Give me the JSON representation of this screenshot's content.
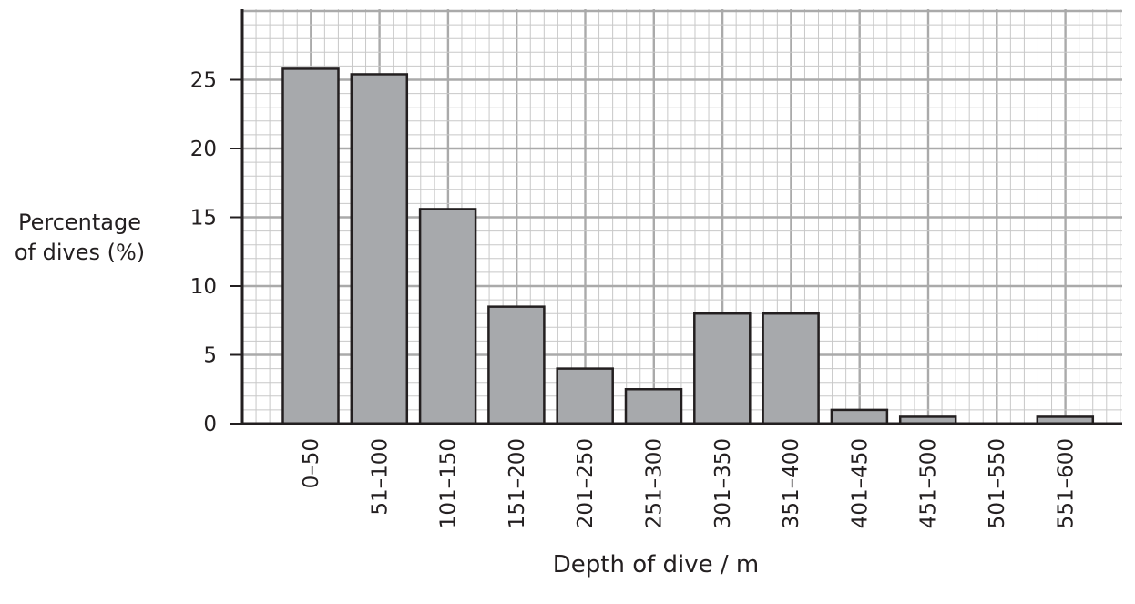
{
  "chart_data": {
    "type": "bar",
    "xlabel": "Depth of dive / m",
    "ylabel_lines": [
      "Percentage",
      "of dives (%)"
    ],
    "categories": [
      "0–50",
      "51–100",
      "101–150",
      "151–200",
      "201–250",
      "251–300",
      "301–350",
      "351–400",
      "401–450",
      "451–500",
      "501–550",
      "551–600"
    ],
    "values": [
      25.8,
      25.4,
      15.6,
      8.5,
      4.0,
      2.5,
      8.0,
      8.0,
      1.0,
      0.5,
      0,
      0.5
    ],
    "yticks": [
      "0",
      "5",
      "10",
      "15",
      "20",
      "25"
    ],
    "ylim": [
      0,
      30
    ],
    "grid": true,
    "colors": {
      "bar_fill": "#a7a9ac",
      "bar_stroke": "#231f20",
      "grid_major": "#aaaaaa",
      "grid_minor": "#c8c8c8"
    }
  }
}
